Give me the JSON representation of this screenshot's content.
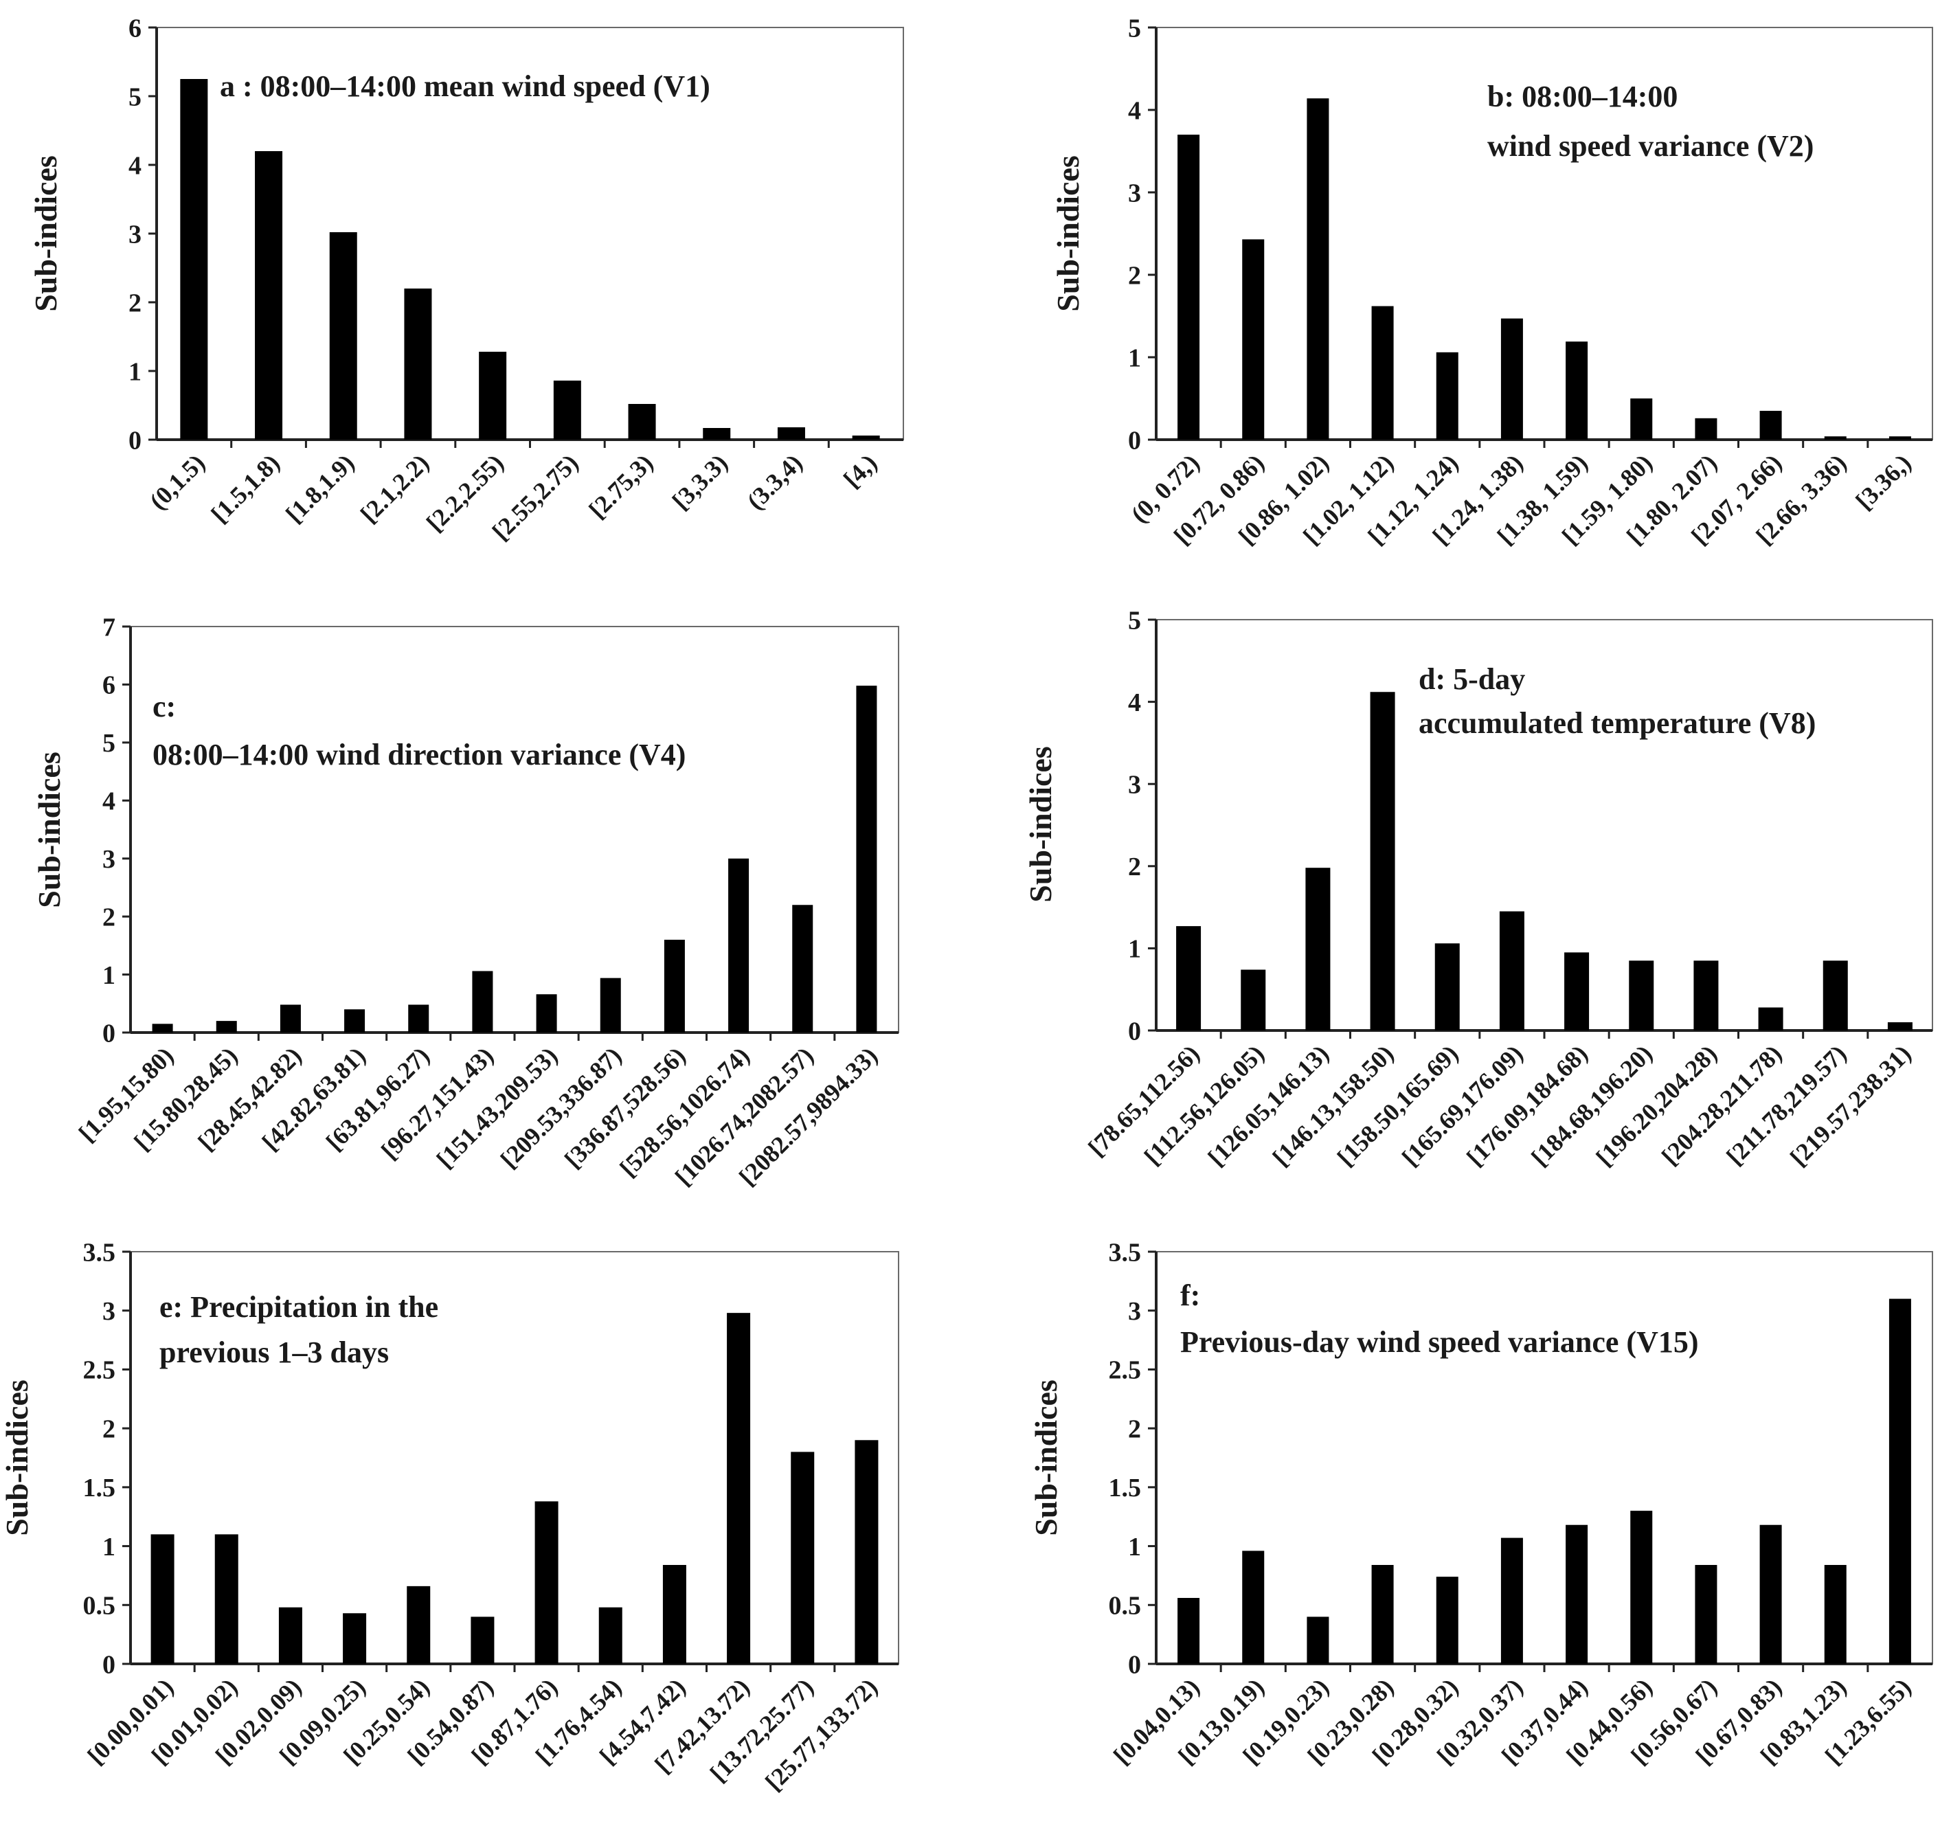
{
  "figure": {
    "ylabel": "Sub-indices",
    "bar_color": "#000000",
    "axis_color": "#222222"
  },
  "chart_data": [
    {
      "id": "a",
      "type": "bar",
      "title_lines": [
        "a : 08:00–14:00 mean wind speed (V1)"
      ],
      "ylabel": "Sub-indices",
      "ylim": [
        0,
        6
      ],
      "yticks": [
        0,
        1,
        2,
        3,
        4,
        5,
        6
      ],
      "ytick_labels": [
        "0",
        "1",
        "2",
        "3",
        "4",
        "5",
        "6"
      ],
      "categories": [
        "(0,1.5)",
        "[1.5,1.8)",
        "[1.8,1.9)",
        "[2.1,2.2)",
        "[2.2,2.55)",
        "[2.55,2.75)",
        "[2.75,3)",
        "[3,3.3)",
        "(3.3,4)",
        "[4,)"
      ],
      "values": [
        5.25,
        4.2,
        3.02,
        2.2,
        1.28,
        0.86,
        0.52,
        0.17,
        0.18,
        0.06
      ]
    },
    {
      "id": "b",
      "type": "bar",
      "title_lines": [
        "b: 08:00–14:00",
        "wind speed variance (V2)"
      ],
      "ylabel": "Sub-indices",
      "ylim": [
        0,
        5
      ],
      "yticks": [
        0,
        1,
        2,
        3,
        4,
        5
      ],
      "ytick_labels": [
        "0",
        "1",
        "2",
        "3",
        "4",
        "5"
      ],
      "categories": [
        "(0, 0.72)",
        "[0.72, 0.86)",
        "[0.86, 1.02)",
        "[1.02, 1.12)",
        "[1.12, 1.24)",
        "[1.24, 1.38)",
        "[1.38, 1.59)",
        "[1.59, 1.80)",
        "[1.80, 2.07)",
        "[2.07, 2.66)",
        "[2.66, 3.36)",
        "[3.36,)"
      ],
      "values": [
        3.7,
        2.43,
        4.14,
        1.62,
        1.06,
        1.47,
        1.19,
        0.5,
        0.26,
        0.35,
        0.04,
        0.04
      ]
    },
    {
      "id": "c",
      "type": "bar",
      "title_lines": [
        "c:",
        "08:00–14:00 wind direction variance (V4)"
      ],
      "ylabel": "Sub-indices",
      "ylim": [
        0,
        7
      ],
      "yticks": [
        0,
        1,
        2,
        3,
        4,
        5,
        6,
        7
      ],
      "ytick_labels": [
        "0",
        "1",
        "2",
        "3",
        "4",
        "5",
        "6",
        "7"
      ],
      "categories": [
        "[1.95,15.80)",
        "[15.80,28.45)",
        "[28.45,42.82)",
        "[42.82,63.81)",
        "[63.81,96.27)",
        "[96.27,151.43)",
        "[151.43,209.53)",
        "[209.53,336.87)",
        "[336.87,528.56)",
        "[528.56,1026.74)",
        "[1026.74,2082.57)",
        "[2082.57,9894.33)"
      ],
      "values": [
        0.15,
        0.2,
        0.48,
        0.4,
        0.48,
        1.06,
        0.66,
        0.94,
        1.6,
        3.0,
        2.2,
        5.98
      ]
    },
    {
      "id": "d",
      "type": "bar",
      "title_lines": [
        "d: 5-day",
        "accumulated temperature (V8)"
      ],
      "ylabel": "Sub-indices",
      "ylim": [
        0,
        5
      ],
      "yticks": [
        0,
        1,
        2,
        3,
        4,
        5
      ],
      "ytick_labels": [
        "0",
        "1",
        "2",
        "3",
        "4",
        "5"
      ],
      "categories": [
        "[78.65,112.56)",
        "[112.56,126.05)",
        "[126.05,146.13)",
        "[146.13,158.50)",
        "[158.50,165.69)",
        "[165.69,176.09)",
        "[176.09,184.68)",
        "[184.68,196.20)",
        "[196.20,204.28)",
        "[204.28,211.78)",
        "[211.78,219.57)",
        "[219.57,238.31)"
      ],
      "values": [
        1.27,
        0.74,
        1.98,
        4.12,
        1.06,
        1.45,
        0.95,
        0.85,
        0.85,
        0.28,
        0.85,
        0.1
      ]
    },
    {
      "id": "e",
      "type": "bar",
      "title_lines": [
        "e: Precipitation in the",
        "previous 1–3 days"
      ],
      "ylabel": "Sub-indices",
      "ylim": [
        0,
        3.5
      ],
      "yticks": [
        0,
        0.5,
        1,
        1.5,
        2,
        2.5,
        3,
        3.5
      ],
      "ytick_labels": [
        "0",
        "0.5",
        "1",
        "1.5",
        "2",
        "2.5",
        "3",
        "3.5"
      ],
      "categories": [
        "[0.00,0.01)",
        "[0.01,0.02)",
        "[0.02,0.09)",
        "[0.09,0.25)",
        "[0.25,0.54)",
        "[0.54,0.87)",
        "[0.87,1.76)",
        "[1.76,4.54)",
        "[4.54,7.42)",
        "[7.42,13.72)",
        "[13.72,25.77)",
        "[25.77,133.72)"
      ],
      "values": [
        1.1,
        1.1,
        0.48,
        0.43,
        0.66,
        0.4,
        1.38,
        0.48,
        0.84,
        2.98,
        1.8,
        1.9
      ]
    },
    {
      "id": "f",
      "type": "bar",
      "title_lines": [
        "f:",
        "Previous-day wind speed variance (V15)"
      ],
      "ylabel": "Sub-indices",
      "ylim": [
        0,
        3.5
      ],
      "yticks": [
        0,
        0.5,
        1,
        1.5,
        2,
        2.5,
        3,
        3.5
      ],
      "ytick_labels": [
        "0",
        "0.5",
        "1",
        "1.5",
        "2",
        "2.5",
        "3",
        "3.5"
      ],
      "categories": [
        "[0.04,0.13)",
        "[0.13,0.19)",
        "[0.19,0.23)",
        "[0.23,0.28)",
        "[0.28,0.32)",
        "[0.32,0.37)",
        "[0.37,0.44)",
        "[0.44,0.56)",
        "[0.56,0.67)",
        "[0.67,0.83)",
        "[0.83,1.23)",
        "[1.23,6.55)"
      ],
      "values": [
        0.56,
        0.96,
        0.4,
        0.84,
        0.74,
        1.07,
        1.18,
        1.3,
        0.84,
        1.18,
        0.84,
        3.1
      ]
    }
  ]
}
